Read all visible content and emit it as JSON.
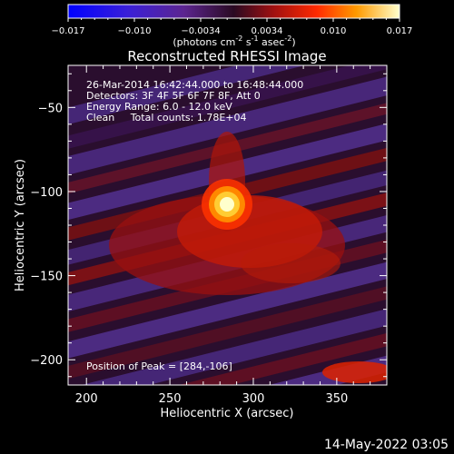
{
  "chart_data": {
    "type": "heatmap",
    "title": "Reconstructed RHESSI Image",
    "xlabel": "Heliocentric X (arcsec)",
    "ylabel": "Heliocentric Y (arcsec)",
    "xlim": [
      189,
      380
    ],
    "ylim": [
      -215,
      -25
    ],
    "x_ticks": [
      200,
      250,
      300,
      350
    ],
    "y_ticks": [
      -50,
      -100,
      -150,
      -200
    ],
    "peak": [
      284,
      -106
    ],
    "colorbar": {
      "ticks": [
        "-0.017",
        "-0.010",
        "-0.0034",
        "0.0034",
        "0.010",
        "0.017"
      ],
      "range": [
        -0.017,
        0.017
      ],
      "unit_label": "(photons cm",
      "unit_exp1": "-2",
      "unit_mid": " s",
      "unit_exp2": "-1",
      "unit_mid2": " asec",
      "unit_exp3": "-2",
      "unit_end": ")"
    },
    "annotations": [
      "26-Mar-2014 16:42:44.000 to 16:48:44.000",
      "Detectors: 3F 4F 5F 6F 7F 8F, Att 0",
      "Energy Range: 6.0 - 12.0 keV",
      "Clean     Total counts: 1.78E+04"
    ],
    "peak_label": "Position of Peak = [284,-106]",
    "timestamp": "14-May-2022 03:05"
  }
}
